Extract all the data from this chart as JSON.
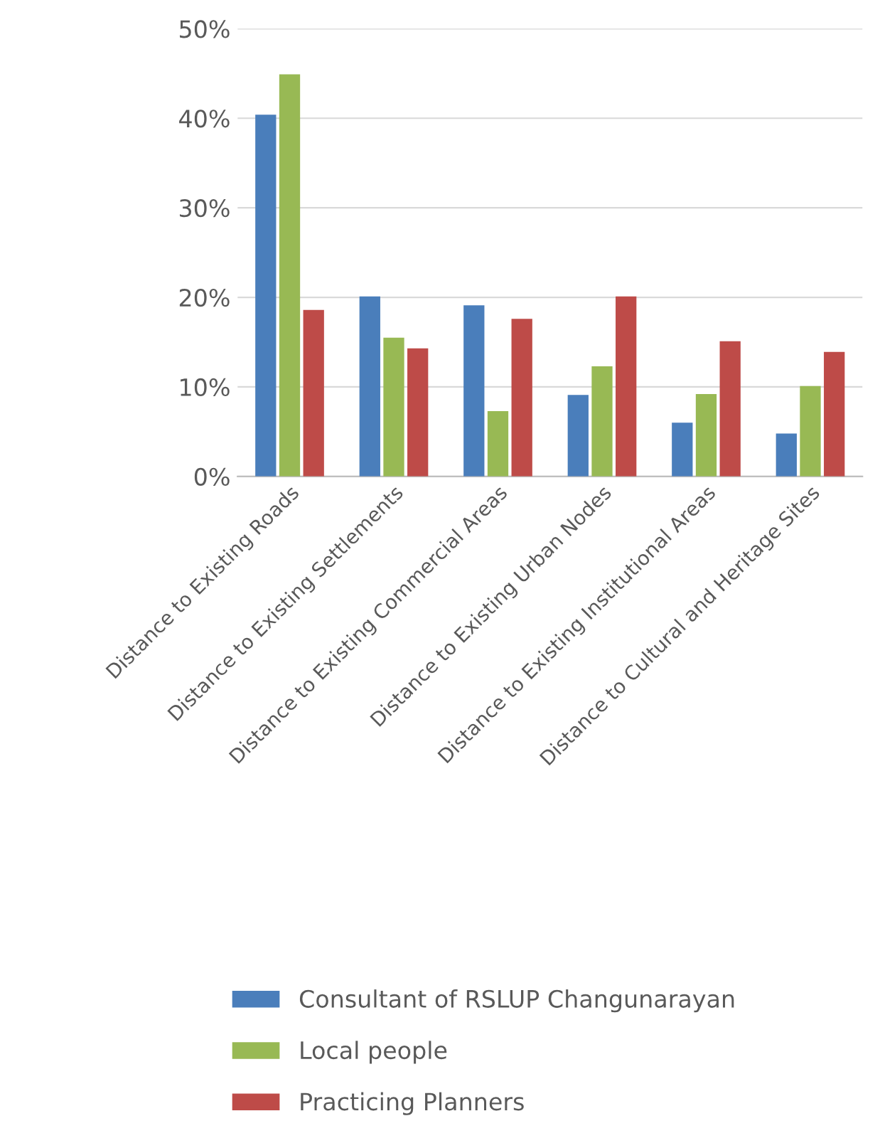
{
  "chart_data": {
    "type": "bar",
    "categories": [
      "Distance to Existing Roads",
      "Distance to Existing Settlements",
      "Distance to Existing Commercial Areas",
      "Distance to Existing Urban Nodes",
      "Distance to Existing Institutional Areas",
      "Distance to Cultural and Heritage Sites"
    ],
    "series": [
      {
        "name": "Consultant of RSLUP Changunarayan",
        "color": "#4a7ebb",
        "values": [
          40.4,
          20.1,
          19.1,
          9.1,
          6.0,
          4.8
        ]
      },
      {
        "name": "Local people",
        "color": "#98b954",
        "values": [
          44.9,
          15.5,
          7.3,
          12.3,
          9.2,
          10.1
        ]
      },
      {
        "name": "Practicing Planners",
        "color": "#be4b48",
        "values": [
          18.6,
          14.3,
          17.6,
          20.1,
          15.1,
          13.9
        ]
      }
    ],
    "ylim": [
      0,
      50
    ],
    "yticks": [
      {
        "value": 0,
        "label": "0%"
      },
      {
        "value": 10,
        "label": "10%"
      },
      {
        "value": 20,
        "label": "20%"
      },
      {
        "value": 30,
        "label": "30%"
      },
      {
        "value": 40,
        "label": "40%"
      },
      {
        "value": 50,
        "label": "50%"
      }
    ],
    "grid": "y",
    "legend": "bottom"
  }
}
